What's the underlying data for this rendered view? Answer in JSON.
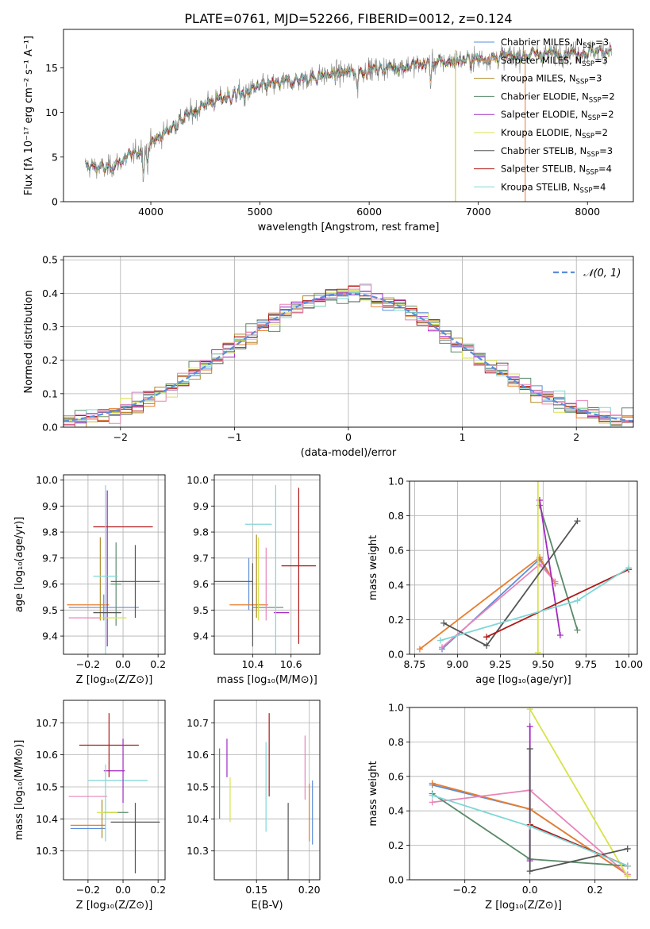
{
  "title": "PLATE=0761, MJD=52266, FIBERID=0012, z=0.124",
  "colors": {
    "Chabrier MILES": "#5b8dd9",
    "Salpeter MILES": "#e87e2e",
    "Kroupa MILES": "#b08a2a",
    "Chabrier ELODIE": "#5a8a6a",
    "Salpeter ELODIE": "#a02ac0",
    "Kroupa ELODIE": "#d8e24a",
    "Chabrier STELIB": "#555555",
    "Salpeter STELIB": "#b01818",
    "Kroupa STELIB": "#7fd6d6",
    "pink": "#e884b8",
    "normal": "#5b8dd9",
    "data": "#808080"
  },
  "chart_data": [
    {
      "id": "spectrum",
      "type": "line",
      "xlabel": "wavelength [Angstrom, rest frame]",
      "ylabel": "Flux [fλ 10⁻¹⁷ erg cm⁻² s⁻¹ A⁻¹]",
      "xlim": [
        3200,
        8420
      ],
      "ylim": [
        0,
        19.3
      ],
      "xticks": [
        4000,
        5000,
        6000,
        7000,
        8000
      ],
      "yticks": [
        0,
        5,
        10,
        15
      ],
      "continuum_x": [
        3400,
        3600,
        3800,
        4000,
        4200,
        4500,
        5000,
        5500,
        6000,
        6500,
        7000,
        7500,
        8000,
        8200
      ],
      "continuum_y": [
        4.0,
        3.7,
        5.0,
        6.5,
        8.5,
        11.0,
        12.8,
        14.0,
        14.8,
        15.4,
        16.0,
        16.5,
        16.8,
        17.0
      ],
      "legend": [
        {
          "label": "Chabrier MILES, N",
          "sub": "SSP",
          "tail": "=3"
        },
        {
          "label": "Salpeter MILES, N",
          "sub": "SSP",
          "tail": "=3"
        },
        {
          "label": "Kroupa MILES, N",
          "sub": "SSP",
          "tail": "=3"
        },
        {
          "label": "Chabrier ELODIE, N",
          "sub": "SSP",
          "tail": "=2"
        },
        {
          "label": "Salpeter ELODIE, N",
          "sub": "SSP",
          "tail": "=2"
        },
        {
          "label": "Kroupa ELODIE, N",
          "sub": "SSP",
          "tail": "=2"
        },
        {
          "label": "Chabrier STELIB, N",
          "sub": "SSP",
          "tail": "=3"
        },
        {
          "label": "Salpeter STELIB, N",
          "sub": "SSP",
          "tail": "=4"
        },
        {
          "label": "Kroupa STELIB, N",
          "sub": "SSP",
          "tail": "=4"
        }
      ]
    },
    {
      "id": "residuals",
      "type": "line",
      "xlabel": "(data-model)/error",
      "ylabel": "Normed distribution",
      "xlim": [
        -2.5,
        2.5
      ],
      "ylim": [
        0,
        0.51
      ],
      "xticks": [
        -2,
        -1,
        0,
        1,
        2
      ],
      "xtick_labels": [
        "−2",
        "−1",
        "0",
        "1",
        "2"
      ],
      "yticks": [
        0,
        0.1,
        0.2,
        0.3,
        0.4,
        0.5
      ],
      "ytick_labels": [
        "0.0",
        "0.1",
        "0.2",
        "0.3",
        "0.4",
        "0.5"
      ],
      "legend": "𝒩(0, 1)",
      "bin_width": 0.1
    },
    {
      "id": "age_vs_Z",
      "type": "scatter",
      "xlabel": "Z [log₁₀(Z/Z⊙)]",
      "ylabel": "age  [log₁₀(age/yr)]",
      "xlim": [
        -0.34,
        0.24
      ],
      "ylim": [
        9.33,
        10.02
      ],
      "xticks": [
        -0.2,
        0.0,
        0.2
      ],
      "xtick_labels": [
        "−0.2",
        "0.0",
        "0.2"
      ],
      "yticks": [
        9.4,
        9.5,
        9.6,
        9.7,
        9.8,
        9.9,
        10.0
      ],
      "ytick_labels": [
        "9.4",
        "9.5",
        "9.6",
        "9.7",
        "9.8",
        "9.9",
        "10.0"
      ],
      "points": [
        {
          "c": "Chabrier MILES",
          "x": -0.11,
          "xe": 0.2,
          "y": 9.51,
          "ye": 0.05
        },
        {
          "c": "Salpeter MILES",
          "x": -0.2,
          "xe": 0.12,
          "y": 9.52,
          "ye": 0.0
        },
        {
          "c": "Kroupa MILES",
          "x": -0.13,
          "xe": 0.0,
          "y": 9.62,
          "ye": 0.16
        },
        {
          "c": "Chabrier ELODIE",
          "x": -0.04,
          "xe": 0.03,
          "y": 9.6,
          "ye": 0.16
        },
        {
          "c": "Salpeter ELODIE",
          "x": -0.09,
          "xe": 0.0,
          "y": 9.66,
          "ye": 0.3
        },
        {
          "c": "Kroupa ELODIE",
          "x": -0.08,
          "xe": 0.1,
          "y": 9.47,
          "ye": 0.0
        },
        {
          "c": "Chabrier STELIB",
          "x": 0.07,
          "xe": 0.14,
          "y": 9.61,
          "ye": 0.14
        },
        {
          "c": "Salpeter STELIB",
          "x": 0.0,
          "xe": 0.17,
          "y": 9.82,
          "ye": 0.0
        },
        {
          "c": "Kroupa STELIB",
          "x": -0.1,
          "xe": 0.07,
          "y": 9.63,
          "ye": 0.35
        },
        {
          "c": "pink",
          "x": -0.22,
          "xe": 0.09,
          "y": 9.47,
          "ye": 0.0
        },
        {
          "c": "Chabrier STELIB",
          "x": -0.09,
          "xe": 0.08,
          "y": 9.49,
          "ye": 0.0
        }
      ]
    },
    {
      "id": "age_vs_mass",
      "type": "scatter",
      "xlabel": "mass [log₁₀(M/M⊙)]",
      "ylabel": "",
      "xlim": [
        10.2,
        10.75
      ],
      "ylim": [
        9.33,
        10.02
      ],
      "xticks": [
        10.4,
        10.6
      ],
      "xtick_labels": [
        "10.4",
        "10.6"
      ],
      "yticks": [
        9.4,
        9.5,
        9.6,
        9.7,
        9.8,
        9.9,
        10.0
      ],
      "ytick_labels": [
        "9.4",
        "9.5",
        "9.6",
        "9.7",
        "9.8",
        "9.9",
        "10.0"
      ],
      "points": [
        {
          "c": "Chabrier MILES",
          "x": 10.38,
          "xe": 0.0,
          "y": 9.6,
          "ye": 0.1
        },
        {
          "c": "Salpeter MILES",
          "x": 10.38,
          "xe": 0.1,
          "y": 9.52,
          "ye": 0.0
        },
        {
          "c": "Kroupa MILES",
          "x": 10.42,
          "xe": 0.0,
          "y": 9.63,
          "ye": 0.16
        },
        {
          "c": "Chabrier ELODIE",
          "x": 10.48,
          "xe": 0.08,
          "y": 9.51,
          "ye": 0.0
        },
        {
          "c": "Salpeter ELODIE",
          "x": 10.55,
          "xe": 0.04,
          "y": 9.49,
          "ye": 0.0
        },
        {
          "c": "Kroupa ELODIE",
          "x": 10.43,
          "xe": 0.0,
          "y": 9.62,
          "ye": 0.16
        },
        {
          "c": "Chabrier STELIB",
          "x": 10.3,
          "xe": 0.1,
          "y": 9.61,
          "ye": 0.0
        },
        {
          "c": "Salpeter STELIB",
          "x": 10.64,
          "xe": 0.09,
          "y": 9.67,
          "ye": 0.3
        },
        {
          "c": "Kroupa STELIB",
          "x": 10.52,
          "xe": 0.0,
          "y": 9.63,
          "ye": 0.35
        },
        {
          "c": "pink",
          "x": 10.47,
          "xe": 0.0,
          "y": 9.6,
          "ye": 0.14
        },
        {
          "c": "Chabrier STELIB",
          "x": 10.4,
          "xe": 0.0,
          "y": 9.52,
          "ye": 0.16
        },
        {
          "c": "Kroupa STELIB",
          "x": 10.43,
          "xe": 0.07,
          "y": 9.83,
          "ye": 0.0
        }
      ]
    },
    {
      "id": "weight_vs_age",
      "type": "line",
      "xlabel": "age  [log₁₀(age/yr)]",
      "ylabel": "mass weight",
      "xlim": [
        8.72,
        10.05
      ],
      "ylim": [
        0,
        1
      ],
      "xticks": [
        8.75,
        9.0,
        9.25,
        9.5,
        9.75,
        10.0
      ],
      "xtick_labels": [
        "8.75",
        "9.00",
        "9.25",
        "9.50",
        "9.75",
        "10.00"
      ],
      "yticks": [
        0,
        0.2,
        0.4,
        0.6,
        0.8,
        1.0
      ],
      "ytick_labels": [
        "0.0",
        "0.2",
        "0.4",
        "0.6",
        "0.8",
        "1.0"
      ],
      "series": [
        {
          "c": "Chabrier MILES",
          "x": [
            8.91,
            9.48,
            9.57
          ],
          "y": [
            0.03,
            0.55,
            0.41
          ]
        },
        {
          "c": "Salpeter MILES",
          "x": [
            8.78,
            9.48,
            9.57
          ],
          "y": [
            0.03,
            0.56,
            0.41
          ]
        },
        {
          "c": "pink",
          "x": [
            8.91,
            9.48,
            9.57
          ],
          "y": [
            0.04,
            0.52,
            0.42
          ]
        },
        {
          "c": "Chabrier ELODIE",
          "x": [
            9.48,
            9.7
          ],
          "y": [
            0.86,
            0.14
          ]
        },
        {
          "c": "Salpeter ELODIE",
          "x": [
            9.48,
            9.6
          ],
          "y": [
            0.89,
            0.11
          ]
        },
        {
          "c": "Kroupa ELODIE",
          "x": [
            9.47,
            9.47
          ],
          "y": [
            1.0,
            0.01
          ]
        },
        {
          "c": "Chabrier STELIB",
          "x": [
            8.92,
            9.17,
            9.7
          ],
          "y": [
            0.18,
            0.05,
            0.77
          ]
        },
        {
          "c": "Salpeter STELIB",
          "x": [
            9.17,
            10.0
          ],
          "y": [
            0.1,
            0.49
          ]
        },
        {
          "c": "Kroupa STELIB",
          "x": [
            8.9,
            9.7,
            10.0
          ],
          "y": [
            0.08,
            0.31,
            0.5
          ]
        }
      ]
    },
    {
      "id": "mass_vs_Z",
      "type": "scatter",
      "xlabel": "Z [log₁₀(Z/Z⊙)]",
      "ylabel": "mass [log₁₀(M/M⊙)]",
      "xlim": [
        -0.34,
        0.24
      ],
      "ylim": [
        10.21,
        10.77
      ],
      "xticks": [
        -0.2,
        0.0,
        0.2
      ],
      "xtick_labels": [
        "−0.2",
        "0.0",
        "0.2"
      ],
      "yticks": [
        10.3,
        10.4,
        10.5,
        10.6,
        10.7
      ],
      "ytick_labels": [
        "10.3",
        "10.4",
        "10.5",
        "10.6",
        "10.7"
      ],
      "points": [
        {
          "c": "Chabrier MILES",
          "x": -0.2,
          "xe": 0.1,
          "y": 10.37,
          "ye": 0.0
        },
        {
          "c": "Salpeter MILES",
          "x": -0.2,
          "xe": 0.1,
          "y": 10.38,
          "ye": 0.0
        },
        {
          "c": "Kroupa MILES",
          "x": -0.12,
          "xe": 0.0,
          "y": 10.4,
          "ye": 0.06
        },
        {
          "c": "Chabrier ELODIE",
          "x": -0.04,
          "xe": 0.07,
          "y": 10.42,
          "ye": 0.0
        },
        {
          "c": "Salpeter ELODIE",
          "x": -0.05,
          "xe": 0.06,
          "y": 10.55,
          "ye": 0.0
        },
        {
          "c": "Kroupa ELODIE",
          "x": -0.09,
          "xe": 0.06,
          "y": 10.42,
          "ye": 0.0
        },
        {
          "c": "Chabrier STELIB",
          "x": 0.07,
          "xe": 0.14,
          "y": 10.39,
          "ye": 0.0
        },
        {
          "c": "Salpeter STELIB",
          "x": -0.08,
          "xe": 0.17,
          "y": 10.63,
          "ye": 0.1
        },
        {
          "c": "Kroupa STELIB",
          "x": -0.03,
          "xe": 0.17,
          "y": 10.52,
          "ye": 0.0
        },
        {
          "c": "pink",
          "x": -0.2,
          "xe": 0.11,
          "y": 10.47,
          "ye": 0.0
        },
        {
          "c": "Chabrier STELIB",
          "x": 0.07,
          "xe": 0.0,
          "y": 10.34,
          "ye": 0.11
        },
        {
          "c": "Salpeter ELODIE",
          "x": 0.0,
          "xe": 0.0,
          "y": 10.55,
          "ye": 0.1
        },
        {
          "c": "Kroupa STELIB",
          "x": -0.1,
          "xe": 0.0,
          "y": 10.45,
          "ye": 0.12
        }
      ]
    },
    {
      "id": "mass_vs_EBV",
      "type": "scatter",
      "xlabel": "E(B-V)",
      "ylabel": "",
      "xlim": [
        0.11,
        0.21
      ],
      "ylim": [
        10.21,
        10.77
      ],
      "xticks": [
        0.15,
        0.2
      ],
      "xtick_labels": [
        "0.15",
        "0.20"
      ],
      "yticks": [
        10.3,
        10.4,
        10.5,
        10.6,
        10.7
      ],
      "ytick_labels": [
        "10.3",
        "10.4",
        "10.5",
        "10.6",
        "10.7"
      ],
      "points": [
        {
          "c": "Chabrier ELODIE",
          "x": 0.115,
          "xe": 0.0,
          "y": 10.51,
          "ye": 0.11
        },
        {
          "c": "Salpeter ELODIE",
          "x": 0.122,
          "xe": 0.0,
          "y": 10.59,
          "ye": 0.06
        },
        {
          "c": "Kroupa ELODIE",
          "x": 0.125,
          "xe": 0.0,
          "y": 10.46,
          "ye": 0.07
        },
        {
          "c": "Kroupa STELIB",
          "x": 0.159,
          "xe": 0.0,
          "y": 10.5,
          "ye": 0.14
        },
        {
          "c": "Salpeter STELIB",
          "x": 0.162,
          "xe": 0.0,
          "y": 10.6,
          "ye": 0.13
        },
        {
          "c": "Chabrier STELIB",
          "x": 0.18,
          "xe": 0.0,
          "y": 10.32,
          "ye": 0.13
        },
        {
          "c": "pink",
          "x": 0.196,
          "xe": 0.0,
          "y": 10.56,
          "ye": 0.1
        },
        {
          "c": "Salpeter MILES",
          "x": 0.2,
          "xe": 0.0,
          "y": 10.42,
          "ye": 0.09
        },
        {
          "c": "Chabrier MILES",
          "x": 0.203,
          "xe": 0.0,
          "y": 10.42,
          "ye": 0.1
        }
      ]
    },
    {
      "id": "weight_vs_Z",
      "type": "line",
      "xlabel": "Z [log₁₀(Z/Z⊙)]",
      "ylabel": "mass weight",
      "xlim": [
        -0.37,
        0.33
      ],
      "ylim": [
        0,
        1
      ],
      "xticks": [
        -0.2,
        0.0,
        0.2
      ],
      "xtick_labels": [
        "−0.2",
        "0.0",
        "0.2"
      ],
      "yticks": [
        0,
        0.2,
        0.4,
        0.6,
        0.8,
        1.0
      ],
      "ytick_labels": [
        "0.0",
        "0.2",
        "0.4",
        "0.6",
        "0.8",
        "1.0"
      ],
      "series": [
        {
          "c": "Chabrier MILES",
          "x": [
            -0.3,
            0.0,
            0.3
          ],
          "y": [
            0.55,
            0.41,
            0.03
          ]
        },
        {
          "c": "Salpeter MILES",
          "x": [
            -0.3,
            0.0,
            0.3
          ],
          "y": [
            0.56,
            0.41,
            0.03
          ]
        },
        {
          "c": "pink",
          "x": [
            -0.3,
            0.0,
            0.3
          ],
          "y": [
            0.45,
            0.52,
            0.03
          ]
        },
        {
          "c": "Chabrier ELODIE",
          "x": [
            -0.3,
            0.0,
            0.3
          ],
          "y": [
            0.5,
            0.12,
            0.08
          ]
        },
        {
          "c": "Salpeter ELODIE",
          "x": [
            0.0,
            0.0
          ],
          "y": [
            0.89,
            0.11
          ]
        },
        {
          "c": "Kroupa ELODIE",
          "x": [
            0.0,
            0.3
          ],
          "y": [
            0.99,
            0.02
          ]
        },
        {
          "c": "Chabrier STELIB",
          "x": [
            0.0,
            0.0,
            0.3
          ],
          "y": [
            0.76,
            0.05,
            0.18
          ]
        },
        {
          "c": "Salpeter STELIB",
          "x": [
            0.0,
            0.3
          ],
          "y": [
            0.32,
            0.08
          ]
        },
        {
          "c": "Kroupa STELIB",
          "x": [
            -0.3,
            0.0,
            0.3
          ],
          "y": [
            0.49,
            0.31,
            0.08
          ]
        }
      ]
    }
  ]
}
